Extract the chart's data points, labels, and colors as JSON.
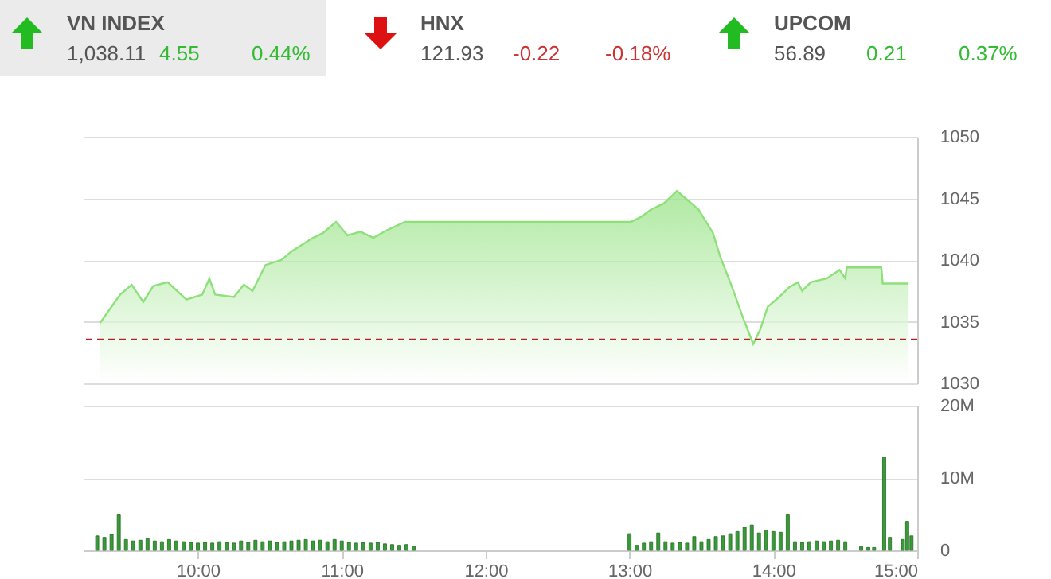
{
  "chart_data": [
    {
      "type": "other",
      "title": "VN INDEX",
      "values": [
        1038.11,
        4.55,
        0.44
      ],
      "value_labels": [
        "1,038.11",
        "4.55",
        "0.44%"
      ],
      "colors": [
        "#555555",
        "#33bb33",
        "#33bb33"
      ],
      "color": "#22bb22"
    },
    {
      "type": "other",
      "title": "HNX",
      "values": [
        121.93,
        -0.22,
        -0.18
      ],
      "value_labels": [
        "121.93",
        "-0.22",
        "-0.18%"
      ],
      "colors": [
        "#555555",
        "#cc3333",
        "#cc3333"
      ],
      "color": "#dd1111"
    },
    {
      "type": "other",
      "title": "UPCOM",
      "values": [
        56.89,
        0.21,
        0.37
      ],
      "value_labels": [
        "56.89",
        "0.21",
        "0.37%"
      ],
      "colors": [
        "#555555",
        "#33bb33",
        "#33bb33"
      ],
      "color": "#22bb22"
    },
    {
      "type": "area",
      "color": "#8ee07a",
      "x": [
        9.32,
        9.46,
        9.54,
        9.62,
        9.69,
        9.79,
        9.92,
        10.03,
        10.08,
        10.12,
        10.25,
        10.32,
        10.38,
        10.47,
        10.58,
        10.65,
        10.8,
        10.87,
        10.96,
        11.04,
        11.13,
        11.22,
        11.31,
        11.44,
        11.5,
        13.01,
        13.08,
        13.15,
        13.24,
        13.33,
        13.39,
        13.48,
        13.58,
        13.63,
        13.71,
        13.79,
        13.86,
        13.91,
        13.96,
        14.04,
        14.11,
        14.17,
        14.2,
        14.26,
        14.37,
        14.46,
        14.5,
        14.51,
        14.75,
        14.76,
        14.94
      ],
      "values": [
        1034.9,
        1037.2,
        1038.0,
        1036.6,
        1037.9,
        1038.2,
        1036.8,
        1037.2,
        1038.5,
        1037.2,
        1037.0,
        1038.0,
        1037.5,
        1039.6,
        1040.0,
        1040.7,
        1041.8,
        1042.2,
        1043.1,
        1042.0,
        1042.3,
        1041.8,
        1042.4,
        1043.1,
        1043.1,
        1043.1,
        1043.5,
        1044.1,
        1044.6,
        1045.6,
        1045.0,
        1044.1,
        1042.2,
        1040.3,
        1037.9,
        1035.3,
        1033.2,
        1034.4,
        1036.2,
        1037.0,
        1037.8,
        1038.2,
        1037.5,
        1038.2,
        1038.5,
        1039.2,
        1038.5,
        1039.4,
        1039.4,
        1038.1,
        1038.1
      ],
      "xlim": [
        9.2,
        15
      ],
      "ylim": [
        1030,
        1050
      ],
      "yticks": [
        1030,
        1035,
        1040,
        1045,
        1050
      ],
      "grid": "y",
      "tick_labels": "y",
      "ref_lines": [
        {
          "axis": "y",
          "value": 1033.56,
          "color": "#b22222",
          "line_style": "dashed"
        }
      ]
    },
    {
      "type": "bar",
      "color": "#3a9a3a",
      "x": [
        9.3,
        9.35,
        9.4,
        9.45,
        9.5,
        9.55,
        9.6,
        9.65,
        9.7,
        9.75,
        9.8,
        9.85,
        9.9,
        9.95,
        10.0,
        10.05,
        10.1,
        10.15,
        10.2,
        10.25,
        10.3,
        10.35,
        10.4,
        10.45,
        10.5,
        10.55,
        10.6,
        10.65,
        10.7,
        10.75,
        10.8,
        10.85,
        10.9,
        10.95,
        11.0,
        11.05,
        11.1,
        11.15,
        11.2,
        11.25,
        11.3,
        11.35,
        11.4,
        11.45,
        11.5,
        13.0,
        13.05,
        13.1,
        13.15,
        13.2,
        13.25,
        13.3,
        13.35,
        13.4,
        13.45,
        13.5,
        13.55,
        13.6,
        13.65,
        13.7,
        13.75,
        13.8,
        13.85,
        13.9,
        13.95,
        14.0,
        14.05,
        14.1,
        14.15,
        14.2,
        14.25,
        14.3,
        14.35,
        14.4,
        14.45,
        14.5,
        14.61,
        14.66,
        14.7,
        14.77,
        14.81,
        14.9,
        14.93,
        14.96
      ],
      "values": [
        2000000,
        1800000,
        2200000,
        5000000,
        1500000,
        1300000,
        1400000,
        1600000,
        1300000,
        1200000,
        1500000,
        1300000,
        1200000,
        1100000,
        1000000,
        1100000,
        1000000,
        1200000,
        1100000,
        1000000,
        1300000,
        1100000,
        1400000,
        1200000,
        1300000,
        1100000,
        1200000,
        1300000,
        1400000,
        1500000,
        1300000,
        1400000,
        1200000,
        1500000,
        1300000,
        1100000,
        1000000,
        1100000,
        1000000,
        1100000,
        900000,
        800000,
        700000,
        800000,
        600000,
        2300000,
        700000,
        1000000,
        1200000,
        2400000,
        1200000,
        1000000,
        1100000,
        1000000,
        1900000,
        1200000,
        1500000,
        1900000,
        2000000,
        2300000,
        2600000,
        3200000,
        3500000,
        2400000,
        2800000,
        2600000,
        2500000,
        5000000,
        1200000,
        1100000,
        1200000,
        1300000,
        1200000,
        1300000,
        1400000,
        1200000,
        500000,
        400000,
        400000,
        12900000,
        1800000,
        1500000,
        4000000,
        2000000
      ],
      "xlim": [
        9.2,
        15
      ],
      "xticks": [
        {
          "value": 10,
          "label": "10:00"
        },
        {
          "value": 11,
          "label": "11:00"
        },
        {
          "value": 12,
          "label": "12:00"
        },
        {
          "value": 13,
          "label": "13:00"
        },
        {
          "value": 14,
          "label": "14:00"
        },
        {
          "value": 15,
          "label": "15:00"
        }
      ],
      "ylim": [
        0,
        20000000
      ],
      "yticks": [
        {
          "value": 0,
          "label": "0"
        },
        {
          "value": 10000000,
          "label": "10M"
        },
        {
          "value": 20000000,
          "label": "20M"
        }
      ],
      "grid": "y"
    }
  ]
}
